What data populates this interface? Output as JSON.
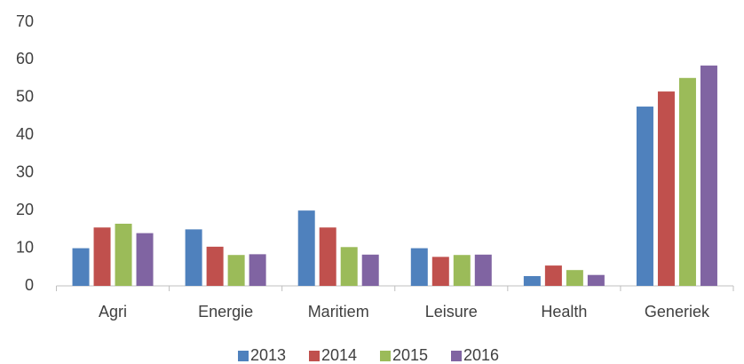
{
  "chart_data": {
    "type": "bar",
    "categories": [
      "Agri",
      "Energie",
      "Maritiem",
      "Leisure",
      "Health",
      "Generiek"
    ],
    "series": [
      {
        "name": "2013",
        "color": "#4f81bd",
        "values": [
          10,
          15,
          20,
          10,
          2.6,
          47.6
        ]
      },
      {
        "name": "2014",
        "color": "#c0504d",
        "values": [
          15.5,
          10.4,
          15.5,
          7.7,
          5.4,
          51.6
        ]
      },
      {
        "name": "2015",
        "color": "#9bbb59",
        "values": [
          16.5,
          8.2,
          10.3,
          8.2,
          4.2,
          55.2
        ]
      },
      {
        "name": "2016",
        "color": "#8064a2",
        "values": [
          14,
          8.4,
          8.3,
          8.3,
          2.9,
          58.5
        ]
      }
    ],
    "ylim": [
      0,
      70
    ],
    "yticks": [
      0,
      10,
      20,
      30,
      40,
      50,
      60,
      70
    ],
    "grid": false,
    "legend": "bottom"
  }
}
